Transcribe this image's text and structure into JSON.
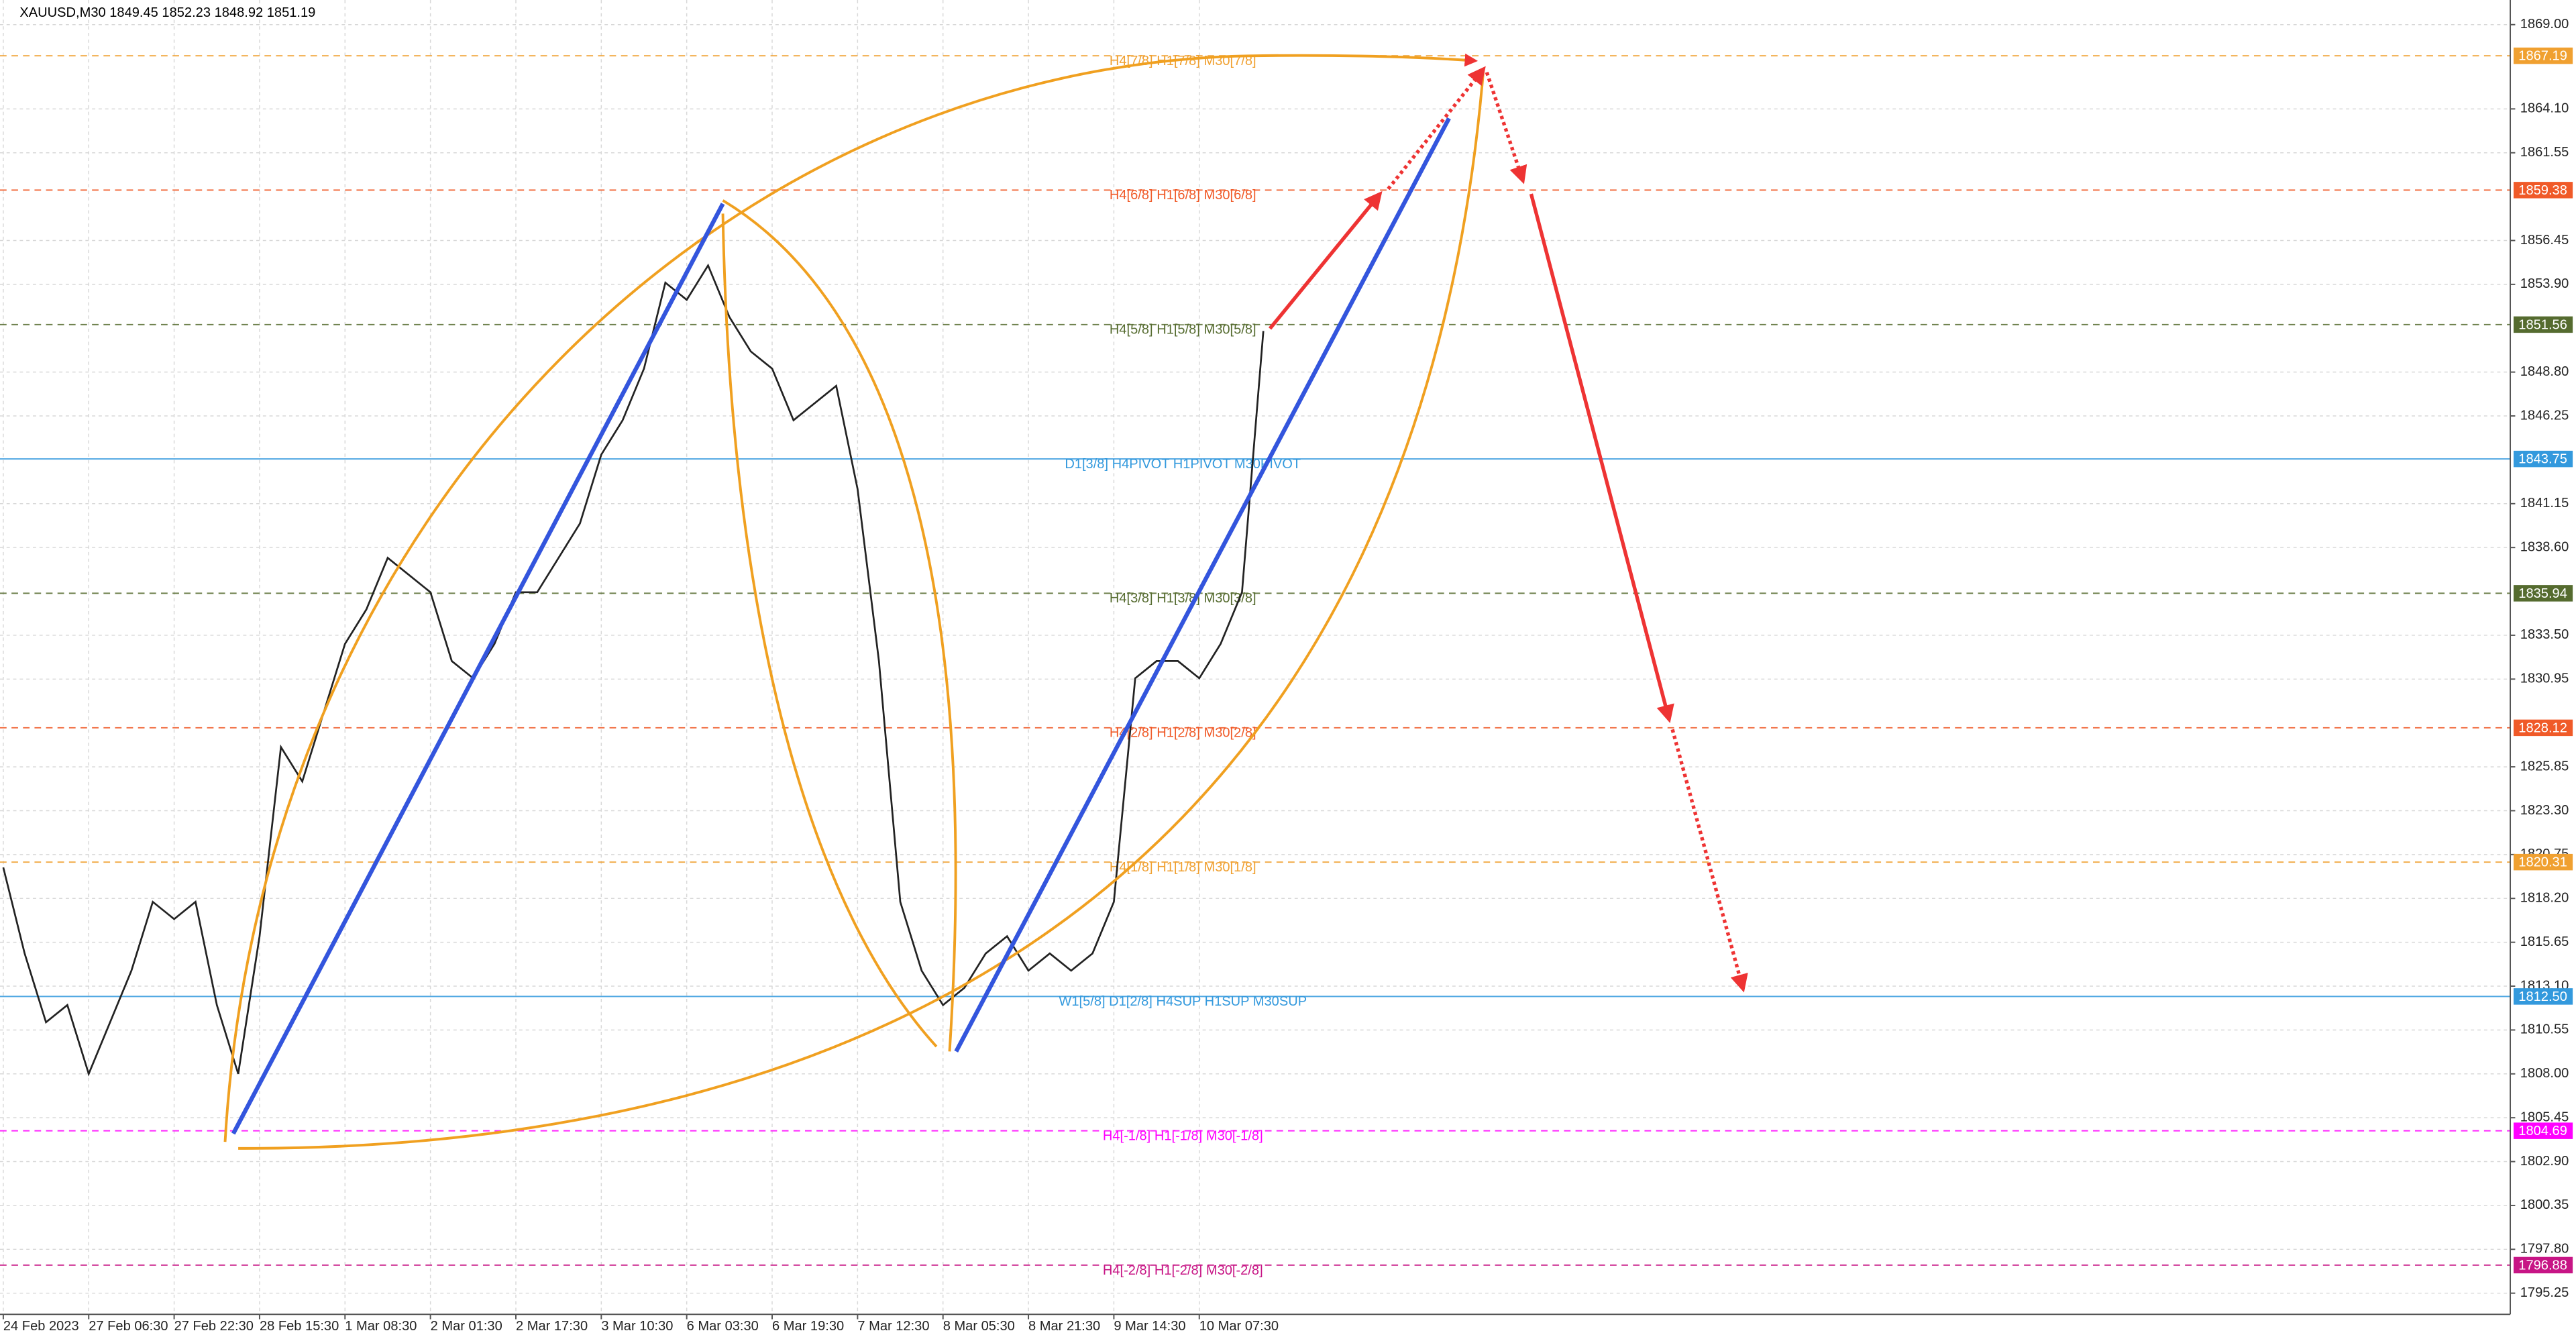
{
  "chart_data": {
    "type": "line",
    "title": "XAUUSD,M30  1849.45 1852.23 1848.92 1851.19",
    "categories": [
      "24 Feb 2023",
      null,
      null,
      null,
      "27 Feb 06:30",
      null,
      null,
      null,
      "27 Feb 22:30",
      null,
      null,
      null,
      "28 Feb 15:30",
      null,
      null,
      null,
      "1 Mar 08:30",
      null,
      null,
      null,
      "2 Mar 01:30",
      null,
      null,
      null,
      "2 Mar 17:30",
      null,
      null,
      null,
      "3 Mar 10:30",
      null,
      null,
      null,
      "6 Mar 03:30",
      null,
      null,
      null,
      "6 Mar 19:30",
      null,
      null,
      null,
      "7 Mar 12:30",
      null,
      null,
      null,
      "8 Mar 05:30",
      null,
      null,
      null,
      "8 Mar 21:30",
      null,
      null,
      null,
      "9 Mar 14:30",
      null,
      null,
      null,
      "10 Mar 07:30",
      null,
      null,
      null
    ],
    "series": [
      {
        "name": "XAUUSD",
        "color": "#222222",
        "values": [
          1820,
          1815,
          1811,
          1812,
          1808,
          1811,
          1814,
          1818,
          1817,
          1818,
          1812,
          1808,
          1816,
          1827,
          1825,
          1829,
          1833,
          1835,
          1838,
          1837,
          1836,
          1832,
          1831,
          1833,
          1836,
          1836,
          1838,
          1840,
          1844,
          1846,
          1849,
          1854,
          1853,
          1855,
          1852,
          1850,
          1849,
          1846,
          1847,
          1848,
          1842,
          1832,
          1818,
          1814,
          1812,
          1813,
          1815,
          1816,
          1814,
          1815,
          1814,
          1815,
          1818,
          1831,
          1832,
          1832,
          1831,
          1833,
          1836,
          1851.19
        ]
      }
    ],
    "ylim": [
      1794.02,
      1870.43
    ],
    "yticks": [
      {
        "value": 1869.0,
        "label": "1869.00"
      },
      {
        "value": 1864.1,
        "label": "1864.10"
      },
      {
        "value": 1861.55,
        "label": "1861.55"
      },
      {
        "value": 1856.45,
        "label": "1856.45"
      },
      {
        "value": 1853.9,
        "label": "1853.90"
      },
      {
        "value": 1848.8,
        "label": "1848.80"
      },
      {
        "value": 1846.25,
        "label": "1846.25"
      },
      {
        "value": 1841.15,
        "label": "1841.15"
      },
      {
        "value": 1838.6,
        "label": "1838.60"
      },
      {
        "value": 1833.5,
        "label": "1833.50"
      },
      {
        "value": 1830.95,
        "label": "1830.95"
      },
      {
        "value": 1825.85,
        "label": "1825.85"
      },
      {
        "value": 1823.3,
        "label": "1823.30"
      },
      {
        "value": 1820.75,
        "label": "1820.75"
      },
      {
        "value": 1818.2,
        "label": "1818.20"
      },
      {
        "value": 1815.65,
        "label": "1815.65"
      },
      {
        "value": 1813.1,
        "label": "1813.10"
      },
      {
        "value": 1810.55,
        "label": "1810.55"
      },
      {
        "value": 1808.0,
        "label": "1808.00"
      },
      {
        "value": 1805.45,
        "label": "1805.45"
      },
      {
        "value": 1802.9,
        "label": "1802.90"
      },
      {
        "value": 1800.35,
        "label": "1800.35"
      },
      {
        "value": 1797.8,
        "label": "1797.80"
      },
      {
        "value": 1795.25,
        "label": "1795.25"
      }
    ],
    "grid": true,
    "levels": {
      "names": [
        "H4[7/8] H1[7/8] M30[7/8]",
        "H4[6/8] H1[6/8] M30[6/8]",
        "H4[5/8] H1[5/8] M30[5/8]",
        "D1[3/8] H4PIVOT H1PIVOT M30PIVOT",
        "H4[3/8] H1[3/8] M30[3/8]",
        "H4[2/8] H1[2/8] M30[2/8]",
        "H4[1/8] H1[1/8] M30[1/8]",
        "W1[5/8] D1[2/8] H4SUP H1SUP M30SUP",
        "H4[-1/8] H1[-1/8] M30[-1/8]",
        "H4[-2/8] H1[-2/8] M30[-2/8]"
      ],
      "values": [
        1867.19,
        1859.38,
        1851.56,
        1843.75,
        1835.94,
        1828.12,
        1820.31,
        1812.5,
        1804.69,
        1796.88
      ],
      "value_labels": [
        "1867.19",
        "1859.38",
        "1851.56",
        "1843.75",
        "1835.94",
        "1828.12",
        "1820.31",
        "1812.50",
        "1804.69",
        "1796.88"
      ],
      "colors": [
        "#f0a030",
        "#f05a28",
        "#556b2f",
        "#3399dd",
        "#556b2f",
        "#f05a28",
        "#f0a030",
        "#3399dd",
        "#ff00ff",
        "#c71585"
      ]
    }
  }
}
